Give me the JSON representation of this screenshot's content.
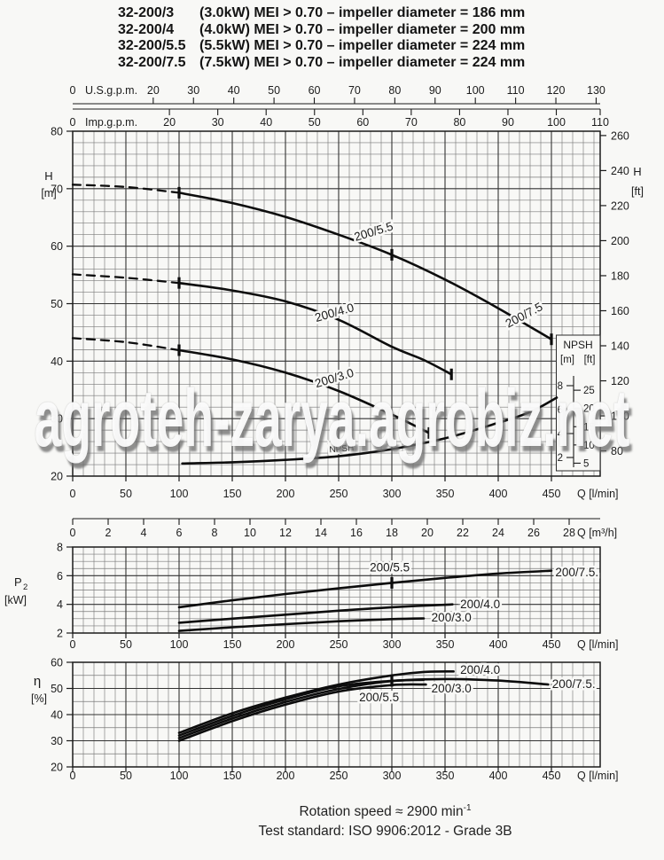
{
  "header": {
    "lines": [
      {
        "model": "32-200/3",
        "spec": "(3.0kW) MEI > 0.70 – impeller diameter = 186 mm"
      },
      {
        "model": "32-200/4",
        "spec": "(4.0kW) MEI > 0.70 – impeller diameter = 200 mm"
      },
      {
        "model": "32-200/5.5",
        "spec": "(5.5kW) MEI > 0.70 – impeller diameter = 224 mm"
      },
      {
        "model": "32-200/7.5",
        "spec": "(7.5kW) MEI > 0.70 – impeller diameter = 224 mm"
      }
    ]
  },
  "watermark": "agroteh-zarya.agrobiz.net",
  "footer": {
    "line1_text": "Rotation speed ≈ 2900 min",
    "line1_sup": "-1",
    "line2": "Test standard: ISO 9906:2012 - Grade 3B"
  },
  "chart_data": [
    {
      "id": "head",
      "type": "line",
      "title": "Head vs flow",
      "x_axis": {
        "label": "Q [l/min]",
        "min": 0,
        "max": 496,
        "ticks": [
          0,
          50,
          100,
          150,
          200,
          250,
          300,
          350,
          400,
          450
        ]
      },
      "y_axis": {
        "label": [
          "H",
          "[m]"
        ],
        "min": 20,
        "max": 80,
        "ticks": [
          80,
          70,
          60,
          50,
          40,
          30,
          20
        ]
      },
      "y2_axis": {
        "label": [
          "H",
          "[ft]"
        ],
        "ticks": [
          260,
          240,
          220,
          200,
          180,
          160,
          140,
          120,
          100,
          80
        ]
      },
      "top_scales": [
        {
          "name": "U.S.g.p.m.",
          "zero": "0",
          "lpm_per_unit": 3.785,
          "ticks": [
            20,
            30,
            40,
            50,
            60,
            70,
            80,
            90,
            100,
            110,
            120,
            130
          ]
        },
        {
          "name": "Imp.g.p.m.",
          "zero": "0",
          "lpm_per_unit": 4.546,
          "ticks": [
            20,
            30,
            40,
            50,
            60,
            70,
            80,
            90,
            100,
            110
          ]
        }
      ],
      "bottom_scale": {
        "name": "Q [m³/h]",
        "lpm_per_unit": 16.667,
        "ticks": [
          0,
          2,
          4,
          6,
          8,
          10,
          12,
          14,
          16,
          18,
          20,
          22,
          24,
          26,
          28
        ]
      },
      "npsh_scale": {
        "title": "NPSH",
        "units": [
          "[m]",
          "[ft]"
        ],
        "m_ticks": [
          8,
          6,
          4,
          2
        ],
        "ft_ticks": [
          25,
          20,
          15,
          10,
          5
        ]
      },
      "series": [
        {
          "name": "200/5.5 & 200/7.5",
          "dash_until": 100,
          "points": [
            [
              0,
              70.7
            ],
            [
              50,
              70.3
            ],
            [
              100,
              69.3
            ],
            [
              150,
              67.5
            ],
            [
              200,
              65.1
            ],
            [
              250,
              62.0
            ],
            [
              300,
              58.5
            ],
            [
              350,
              54.2
            ],
            [
              400,
              49.2
            ],
            [
              450,
              43.8
            ]
          ],
          "markers": [
            [
              100,
              69.3
            ],
            [
              300,
              58.5
            ],
            [
              450,
              43.8
            ]
          ]
        },
        {
          "name": "200/4.0",
          "dash_until": 100,
          "points": [
            [
              0,
              55.1
            ],
            [
              50,
              54.5
            ],
            [
              100,
              53.6
            ],
            [
              150,
              52.3
            ],
            [
              200,
              50.4
            ],
            [
              250,
              47.2
            ],
            [
              300,
              42.5
            ],
            [
              330,
              40.2
            ],
            [
              356,
              37.7
            ]
          ],
          "markers": [
            [
              100,
              53.6
            ],
            [
              356,
              37.7
            ]
          ]
        },
        {
          "name": "200/3.0",
          "dash_until": 100,
          "points": [
            [
              0,
              44.0
            ],
            [
              50,
              43.3
            ],
            [
              100,
              41.9
            ],
            [
              150,
              40.3
            ],
            [
              200,
              38.0
            ],
            [
              250,
              34.8
            ],
            [
              300,
              30.7
            ],
            [
              335,
              27.5
            ]
          ],
          "markers": [
            [
              100,
              41.9
            ],
            [
              335,
              27.5
            ]
          ]
        },
        {
          "name": "NPSH",
          "scale": "npsh",
          "points": [
            [
              103,
              1.5
            ],
            [
              150,
              1.6
            ],
            [
              200,
              1.8
            ],
            [
              250,
              2.1
            ],
            [
              300,
              2.7
            ],
            [
              350,
              3.6
            ],
            [
              400,
              4.9
            ],
            [
              430,
              5.8
            ],
            [
              455,
              7.0
            ]
          ]
        }
      ],
      "labels": [
        {
          "text": "200/5.5",
          "q": 284,
          "v": 62.5,
          "rot": -17
        },
        {
          "text": "200/4.0",
          "q": 247,
          "v": 48.4,
          "rot": -16
        },
        {
          "text": "200/7.5",
          "q": 426,
          "v": 48.0,
          "rot": -28
        },
        {
          "text": "200/3.0",
          "q": 247,
          "v": 37.0,
          "rot": -17
        },
        {
          "text": "NPSH",
          "q": 253,
          "v": 24.9,
          "rot": -5,
          "size": 10
        }
      ]
    },
    {
      "id": "p2",
      "type": "line",
      "title": "Shaft power vs flow",
      "x_axis": {
        "label": "Q [l/min]",
        "min": 0,
        "max": 496,
        "ticks": [
          0,
          50,
          100,
          150,
          200,
          250,
          300,
          350,
          400,
          450
        ]
      },
      "y_axis": {
        "label_main": "P",
        "label_sub": "2",
        "label_unit": "[kW]",
        "min": 2,
        "max": 8,
        "ticks": [
          8,
          6,
          4,
          2
        ]
      },
      "series": [
        {
          "name": "200/5.5 & 200/7.5",
          "points": [
            [
              100,
              3.8
            ],
            [
              150,
              4.28
            ],
            [
              200,
              4.72
            ],
            [
              250,
              5.12
            ],
            [
              300,
              5.5
            ],
            [
              350,
              5.85
            ],
            [
              400,
              6.15
            ],
            [
              450,
              6.35
            ]
          ],
          "markers": [
            [
              300,
              5.5
            ]
          ]
        },
        {
          "name": "200/4.0",
          "points": [
            [
              100,
              2.72
            ],
            [
              150,
              3.0
            ],
            [
              200,
              3.28
            ],
            [
              250,
              3.56
            ],
            [
              300,
              3.8
            ],
            [
              357,
              4.0
            ]
          ]
        },
        {
          "name": "200/3.0",
          "points": [
            [
              100,
              2.15
            ],
            [
              150,
              2.4
            ],
            [
              200,
              2.62
            ],
            [
              250,
              2.82
            ],
            [
              300,
              2.97
            ],
            [
              330,
              3.02
            ]
          ]
        }
      ],
      "labels": [
        {
          "text": "200/5.5",
          "q": 298,
          "v": 6.55
        },
        {
          "text": "200/7.5.",
          "q": 474,
          "v": 6.2
        },
        {
          "text": "200/4.0",
          "q": 383,
          "v": 3.98
        },
        {
          "text": "200/3.0",
          "q": 356,
          "v": 3.05
        }
      ]
    },
    {
      "id": "eta",
      "type": "line",
      "title": "Efficiency vs flow",
      "x_axis": {
        "label": "Q [l/min]",
        "min": 0,
        "max": 496,
        "ticks": [
          0,
          50,
          100,
          150,
          200,
          250,
          300,
          350,
          400,
          450
        ]
      },
      "y_axis": {
        "label_main": "η",
        "label_unit": "[%]",
        "min": 20,
        "max": 60,
        "ticks": [
          60,
          50,
          40,
          30,
          20
        ]
      },
      "series": [
        {
          "name": "200/4.0",
          "points": [
            [
              100,
              33.0
            ],
            [
              150,
              40.5
            ],
            [
              200,
              46.5
            ],
            [
              250,
              51.5
            ],
            [
              300,
              55.0
            ],
            [
              330,
              56.3
            ],
            [
              358,
              56.5
            ]
          ]
        },
        {
          "name": "200/7.5",
          "points": [
            [
              100,
              31.0
            ],
            [
              150,
              38.5
            ],
            [
              200,
              44.8
            ],
            [
              250,
              49.8
            ],
            [
              300,
              52.8
            ],
            [
              350,
              53.6
            ],
            [
              400,
              53.0
            ],
            [
              447,
              51.5
            ]
          ]
        },
        {
          "name": "200/5.5",
          "points": [
            [
              100,
              32.0
            ],
            [
              150,
              39.5
            ],
            [
              200,
              45.8
            ],
            [
              250,
              50.8
            ],
            [
              300,
              52.9
            ],
            [
              330,
              53.3
            ]
          ],
          "markers": [
            [
              300,
              52.9
            ]
          ]
        },
        {
          "name": "200/3.0",
          "points": [
            [
              100,
              30.0
            ],
            [
              150,
              37.5
            ],
            [
              200,
              43.8
            ],
            [
              250,
              48.8
            ],
            [
              300,
              51.3
            ],
            [
              332,
              51.5
            ]
          ]
        }
      ],
      "labels": [
        {
          "text": "200/4.0",
          "q": 383,
          "v": 57.0
        },
        {
          "text": "200/3.0",
          "q": 356,
          "v": 49.8
        },
        {
          "text": "200/5.5",
          "q": 288,
          "v": 46.4
        },
        {
          "text": "200/7.5.",
          "q": 471,
          "v": 51.5
        }
      ]
    }
  ]
}
